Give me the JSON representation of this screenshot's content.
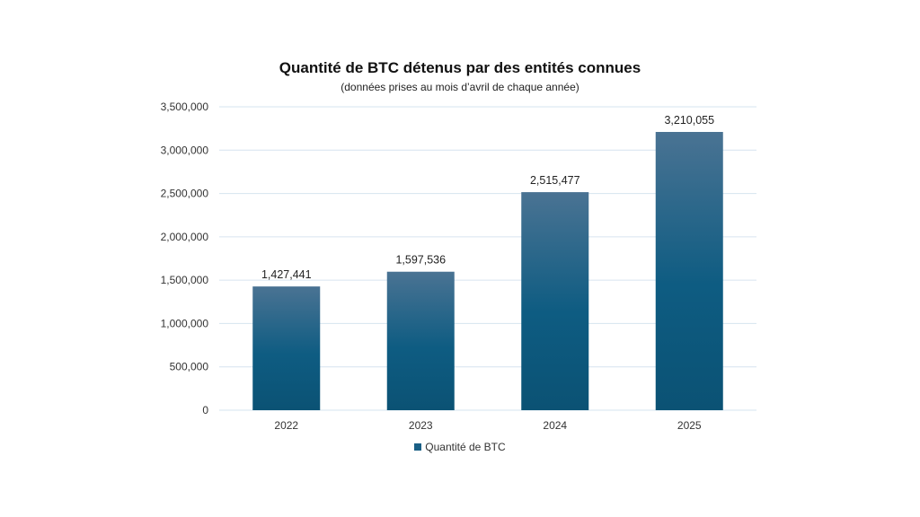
{
  "chart_data": {
    "type": "bar",
    "title": "Quantité de BTC détenus par des entités connues",
    "subtitle": "(données prises au mois d’avril de chaque année)",
    "categories": [
      "2022",
      "2023",
      "2024",
      "2025"
    ],
    "series": [
      {
        "name": "Quantité de BTC",
        "values": [
          1427441,
          1597536,
          2515477,
          3210055
        ],
        "data_labels": [
          "1,427,441",
          "1,597,536",
          "2,515,477",
          "3,210,055"
        ]
      }
    ],
    "ylim": [
      0,
      3500000
    ],
    "yticks": [
      0,
      500000,
      1000000,
      1500000,
      2000000,
      2500000,
      3000000,
      3500000
    ],
    "ytick_labels": [
      "0",
      "500,000",
      "1,000,000",
      "1,500,000",
      "2,000,000",
      "2,500,000",
      "3,000,000",
      "3,500,000"
    ],
    "grid": true,
    "legend_position": "bottom-center",
    "colors": {
      "bar_top": "#4a7393",
      "bar_mid": "#0e5c82",
      "bar_bottom": "#0b5274",
      "grid": "#d6e4ef",
      "legend_swatch": "#1a5f85"
    }
  }
}
